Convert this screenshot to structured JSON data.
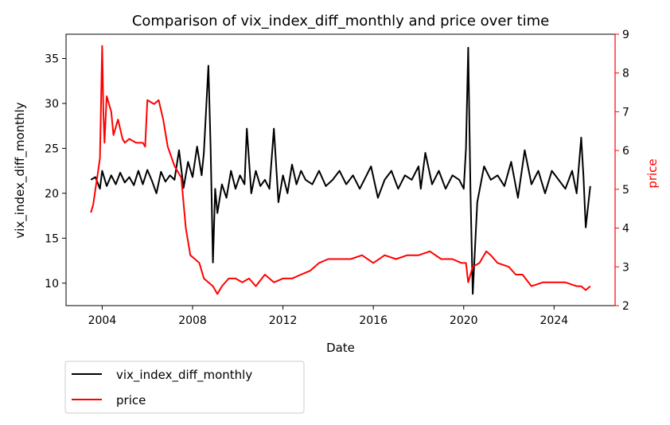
{
  "chart_data": {
    "type": "line",
    "title": "Comparison of vix_index_diff_monthly and price over time",
    "xlabel": "Date",
    "ylabel_left": "vix_index_diff_monthly",
    "ylabel_right": "price",
    "x_ticks": [
      "2004",
      "2008",
      "2012",
      "2016",
      "2020",
      "2024"
    ],
    "x_tick_years": [
      2004,
      2008,
      2012,
      2016,
      2020,
      2024
    ],
    "xlim": [
      2002.4,
      2026.7
    ],
    "y_left_ticks": [
      10,
      15,
      20,
      25,
      30,
      35
    ],
    "y_left_lim": [
      7.5,
      37.7
    ],
    "y_right_ticks": [
      2,
      3,
      4,
      5,
      6,
      7,
      8,
      9
    ],
    "y_right_lim": [
      2.0,
      9.0
    ],
    "legend": {
      "placement": "below-left",
      "entries": [
        "vix_index_diff_monthly",
        "price"
      ]
    },
    "colors": {
      "vix": "#000000",
      "price": "#ff0000",
      "right_axis": "#ff0000"
    },
    "grid": false,
    "series": [
      {
        "name": "vix_index_diff_monthly",
        "axis": "left",
        "x": [
          2003.5,
          2003.7,
          2003.9,
          2004.0,
          2004.2,
          2004.4,
          2004.6,
          2004.8,
          2005.0,
          2005.2,
          2005.4,
          2005.6,
          2005.8,
          2006.0,
          2006.2,
          2006.4,
          2006.6,
          2006.8,
          2007.0,
          2007.2,
          2007.4,
          2007.6,
          2007.8,
          2008.0,
          2008.2,
          2008.4,
          2008.5,
          2008.7,
          2008.8,
          2008.9,
          2009.0,
          2009.1,
          2009.3,
          2009.5,
          2009.7,
          2009.9,
          2010.1,
          2010.3,
          2010.4,
          2010.6,
          2010.8,
          2011.0,
          2011.2,
          2011.4,
          2011.6,
          2011.8,
          2012.0,
          2012.2,
          2012.4,
          2012.6,
          2012.8,
          2013.0,
          2013.3,
          2013.6,
          2013.9,
          2014.2,
          2014.5,
          2014.8,
          2015.1,
          2015.4,
          2015.6,
          2015.9,
          2016.2,
          2016.5,
          2016.8,
          2017.1,
          2017.4,
          2017.7,
          2018.0,
          2018.1,
          2018.3,
          2018.6,
          2018.9,
          2019.2,
          2019.5,
          2019.8,
          2020.0,
          2020.1,
          2020.2,
          2020.3,
          2020.4,
          2020.6,
          2020.9,
          2021.2,
          2021.5,
          2021.8,
          2022.1,
          2022.4,
          2022.7,
          2023.0,
          2023.3,
          2023.6,
          2023.9,
          2024.2,
          2024.5,
          2024.8,
          2025.0,
          2025.2,
          2025.3,
          2025.4,
          2025.6
        ],
        "values": [
          21.5,
          21.8,
          20.5,
          22.5,
          20.8,
          22.0,
          21.0,
          22.3,
          21.2,
          21.8,
          20.9,
          22.5,
          21.0,
          22.6,
          21.4,
          20.0,
          22.4,
          21.3,
          22.0,
          21.5,
          24.8,
          20.6,
          23.5,
          21.8,
          25.2,
          22.0,
          24.5,
          34.2,
          25.0,
          12.3,
          20.5,
          17.8,
          21.0,
          19.5,
          22.5,
          20.5,
          22.0,
          21.0,
          27.2,
          20.0,
          22.5,
          20.8,
          21.5,
          20.5,
          27.2,
          19.0,
          22.0,
          20.0,
          23.2,
          21.0,
          22.5,
          21.5,
          21.0,
          22.5,
          20.8,
          21.5,
          22.5,
          21.0,
          22.0,
          20.5,
          21.5,
          23.0,
          19.5,
          21.5,
          22.5,
          20.5,
          22.0,
          21.5,
          23.0,
          20.5,
          24.5,
          21.0,
          22.5,
          20.5,
          22.0,
          21.5,
          20.5,
          25.0,
          36.2,
          20.0,
          8.8,
          19.0,
          23.0,
          21.5,
          22.0,
          20.8,
          23.5,
          19.5,
          24.8,
          21.0,
          22.5,
          20.0,
          22.5,
          21.5,
          20.5,
          22.5,
          20.0,
          26.2,
          22.0,
          16.2,
          20.8
        ]
      },
      {
        "name": "price",
        "axis": "right",
        "x": [
          2003.5,
          2003.6,
          2003.7,
          2003.8,
          2003.9,
          2004.0,
          2004.05,
          2004.1,
          2004.2,
          2004.4,
          2004.5,
          2004.7,
          2004.9,
          2005.0,
          2005.2,
          2005.5,
          2005.8,
          2005.9,
          2006.0,
          2006.3,
          2006.5,
          2006.7,
          2006.9,
          2007.2,
          2007.5,
          2007.7,
          2007.9,
          2008.1,
          2008.3,
          2008.5,
          2008.7,
          2008.9,
          2009.1,
          2009.3,
          2009.6,
          2009.9,
          2010.2,
          2010.5,
          2010.8,
          2011.2,
          2011.6,
          2012.0,
          2012.4,
          2012.8,
          2013.2,
          2013.6,
          2014.0,
          2014.5,
          2015.0,
          2015.5,
          2016.0,
          2016.5,
          2017.0,
          2017.5,
          2018.0,
          2018.5,
          2019.0,
          2019.5,
          2019.9,
          2020.1,
          2020.2,
          2020.4,
          2020.7,
          2021.0,
          2021.2,
          2021.5,
          2022.0,
          2022.3,
          2022.6,
          2023.0,
          2023.5,
          2024.0,
          2024.5,
          2025.0,
          2025.2,
          2025.4,
          2025.6
        ],
        "values": [
          4.4,
          4.6,
          5.0,
          5.4,
          5.8,
          8.7,
          7.0,
          6.2,
          7.4,
          7.0,
          6.4,
          6.8,
          6.3,
          6.2,
          6.3,
          6.2,
          6.2,
          6.1,
          7.3,
          7.2,
          7.3,
          6.8,
          6.1,
          5.6,
          5.3,
          4.0,
          3.3,
          3.2,
          3.1,
          2.7,
          2.6,
          2.5,
          2.3,
          2.5,
          2.7,
          2.7,
          2.6,
          2.7,
          2.5,
          2.8,
          2.6,
          2.7,
          2.7,
          2.8,
          2.9,
          3.1,
          3.2,
          3.2,
          3.2,
          3.3,
          3.1,
          3.3,
          3.2,
          3.3,
          3.3,
          3.4,
          3.2,
          3.2,
          3.1,
          3.1,
          2.6,
          3.0,
          3.1,
          3.4,
          3.3,
          3.1,
          3.0,
          2.8,
          2.8,
          2.5,
          2.6,
          2.6,
          2.6,
          2.5,
          2.5,
          2.4,
          2.5
        ]
      }
    ]
  }
}
